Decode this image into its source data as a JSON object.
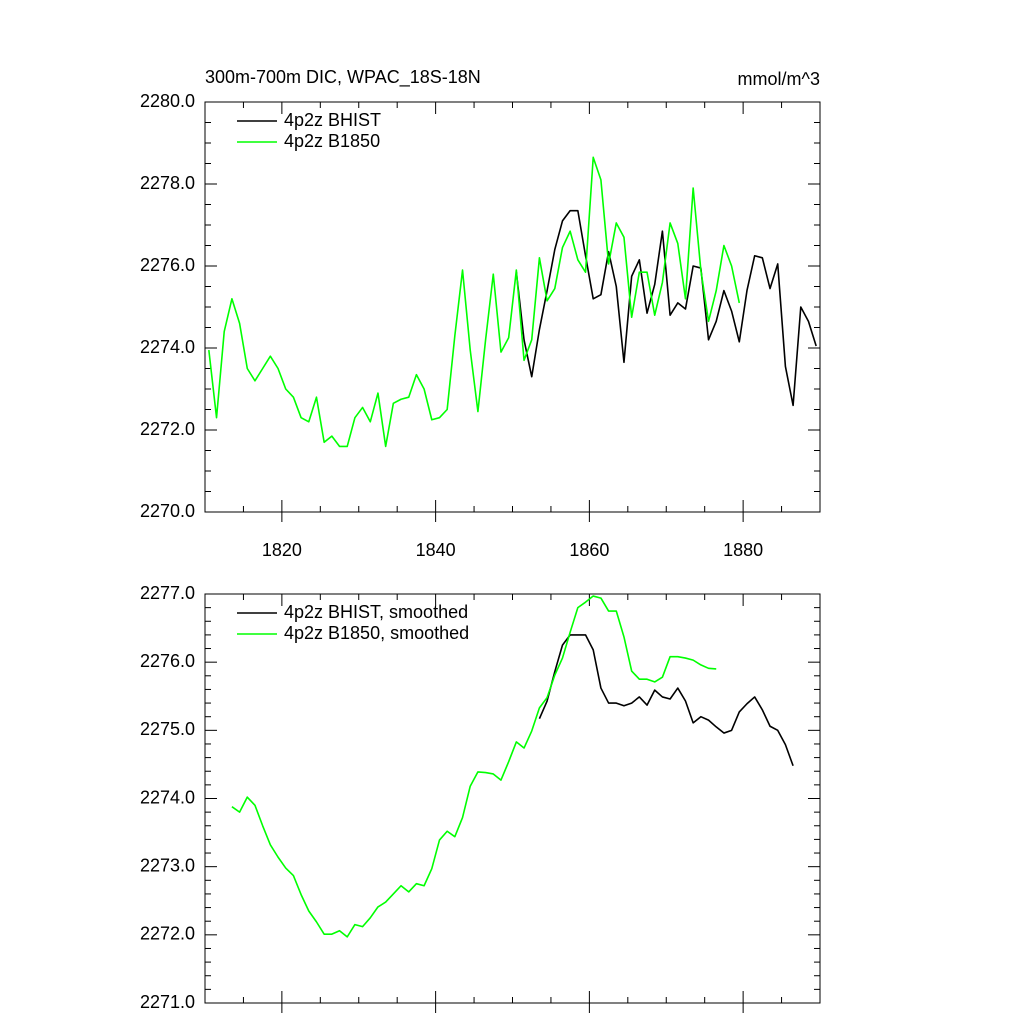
{
  "chart_data": [
    {
      "type": "line",
      "title": "300m-700m DIC, WPAC_18S-18N",
      "units": "mmol/m^3",
      "xlim": [
        1810,
        1890
      ],
      "xticks": [
        1820,
        1840,
        1860,
        1880
      ],
      "ylim": [
        2270,
        2280
      ],
      "yticks": [
        {
          "value": 2270,
          "label": "2270.0"
        },
        {
          "value": 2272,
          "label": "2272.0"
        },
        {
          "value": 2274,
          "label": "2274.0"
        },
        {
          "value": 2276,
          "label": "2276.0"
        },
        {
          "value": 2278,
          "label": "2278.0"
        },
        {
          "value": 2280,
          "label": "2280.0"
        }
      ],
      "series": [
        {
          "name": "4p2z BHIST",
          "color": "#000000",
          "x": [
            1850.5,
            1851.5,
            1852.5,
            1853.5,
            1854.5,
            1855.5,
            1856.5,
            1857.5,
            1858.5,
            1859.5,
            1860.5,
            1861.5,
            1862.5,
            1863.5,
            1864.5,
            1865.5,
            1866.5,
            1867.5,
            1868.5,
            1869.5,
            1870.5,
            1871.5,
            1872.5,
            1873.5,
            1874.5,
            1875.5,
            1876.5,
            1877.5,
            1878.5,
            1879.5,
            1880.5,
            1881.5,
            1882.5,
            1883.5,
            1884.5,
            1885.5,
            1886.5,
            1887.5,
            1888.5,
            1889.5
          ],
          "values": [
            2275.85,
            2274.2,
            2273.3,
            2274.45,
            2275.4,
            2276.4,
            2277.1,
            2277.35,
            2277.35,
            2276.25,
            2275.2,
            2275.3,
            2276.35,
            2275.5,
            2273.65,
            2275.75,
            2276.15,
            2274.85,
            2275.55,
            2276.85,
            2274.8,
            2275.1,
            2274.95,
            2276.0,
            2275.95,
            2274.2,
            2274.65,
            2275.4,
            2274.9,
            2274.15,
            2275.4,
            2276.25,
            2276.2,
            2275.45,
            2276.05,
            2273.55,
            2272.6,
            2275.0,
            2274.65,
            2274.05
          ]
        },
        {
          "name": "4p2z B1850",
          "color": "#00ff00",
          "x": [
            1810.5,
            1811.5,
            1812.5,
            1813.5,
            1814.5,
            1815.5,
            1816.5,
            1817.5,
            1818.5,
            1819.5,
            1820.5,
            1821.5,
            1822.5,
            1823.5,
            1824.5,
            1825.5,
            1826.5,
            1827.5,
            1828.5,
            1829.5,
            1830.5,
            1831.5,
            1832.5,
            1833.5,
            1834.5,
            1835.5,
            1836.5,
            1837.5,
            1838.5,
            1839.5,
            1840.5,
            1841.5,
            1842.5,
            1843.5,
            1844.5,
            1845.5,
            1846.5,
            1847.5,
            1848.5,
            1849.5,
            1850.5,
            1851.5,
            1852.5,
            1853.5,
            1854.5,
            1855.5,
            1856.5,
            1857.5,
            1858.5,
            1859.5,
            1860.5,
            1861.5,
            1862.5,
            1863.5,
            1864.5,
            1865.5,
            1866.5,
            1867.5,
            1868.5,
            1869.5,
            1870.5,
            1871.5,
            1872.5,
            1873.5,
            1874.5,
            1875.5,
            1876.5,
            1877.5,
            1878.5,
            1879.5
          ],
          "values": [
            2273.95,
            2272.3,
            2274.4,
            2275.2,
            2274.6,
            2273.5,
            2273.2,
            2273.5,
            2273.8,
            2273.5,
            2273.0,
            2272.8,
            2272.3,
            2272.2,
            2272.8,
            2271.7,
            2271.85,
            2271.6,
            2271.6,
            2272.3,
            2272.55,
            2272.2,
            2272.9,
            2271.6,
            2272.65,
            2272.75,
            2272.8,
            2273.35,
            2273.0,
            2272.25,
            2272.3,
            2272.5,
            2274.3,
            2275.9,
            2273.95,
            2272.45,
            2274.2,
            2275.8,
            2273.9,
            2274.25,
            2275.9,
            2273.7,
            2274.2,
            2276.2,
            2275.15,
            2275.45,
            2276.45,
            2276.85,
            2276.15,
            2275.85,
            2278.65,
            2278.1,
            2276.05,
            2277.05,
            2276.7,
            2274.75,
            2275.85,
            2275.85,
            2274.8,
            2275.6,
            2277.05,
            2276.55,
            2275.2,
            2277.9,
            2275.9,
            2274.65,
            2275.4,
            2276.5,
            2276.0,
            2275.1
          ]
        }
      ]
    },
    {
      "type": "line",
      "xlim": [
        1810,
        1890
      ],
      "xticks": [
        1820,
        1840,
        1860,
        1880
      ],
      "ylim": [
        2271,
        2277
      ],
      "yticks": [
        {
          "value": 2271,
          "label": "2271.0"
        },
        {
          "value": 2272,
          "label": "2272.0"
        },
        {
          "value": 2273,
          "label": "2273.0"
        },
        {
          "value": 2274,
          "label": "2274.0"
        },
        {
          "value": 2275,
          "label": "2275.0"
        },
        {
          "value": 2276,
          "label": "2276.0"
        },
        {
          "value": 2277,
          "label": "2277.0"
        }
      ],
      "series": [
        {
          "name": "4p2z BHIST, smoothed",
          "color": "#000000",
          "x": [
            1853.5,
            1854.5,
            1855.5,
            1856.5,
            1857.5,
            1858.5,
            1859.5,
            1860.5,
            1861.5,
            1862.5,
            1863.5,
            1864.5,
            1865.5,
            1866.5,
            1867.5,
            1868.5,
            1869.5,
            1870.5,
            1871.5,
            1872.5,
            1873.5,
            1874.5,
            1875.5,
            1876.5,
            1877.5,
            1878.5,
            1879.5,
            1880.5,
            1881.5,
            1882.5,
            1883.5,
            1884.5,
            1885.5,
            1886.5
          ],
          "values": [
            2275.17,
            2275.43,
            2275.86,
            2276.25,
            2276.4,
            2276.4,
            2276.4,
            2276.18,
            2275.62,
            2275.4,
            2275.4,
            2275.36,
            2275.4,
            2275.49,
            2275.37,
            2275.59,
            2275.49,
            2275.46,
            2275.62,
            2275.43,
            2275.11,
            2275.2,
            2275.15,
            2275.05,
            2274.96,
            2275.0,
            2275.27,
            2275.39,
            2275.49,
            2275.3,
            2275.06,
            2275.0,
            2274.79,
            2274.48
          ]
        },
        {
          "name": "4p2z B1850, smoothed",
          "color": "#00ff00",
          "x": [
            1813.5,
            1814.5,
            1815.5,
            1816.5,
            1817.5,
            1818.5,
            1819.5,
            1820.5,
            1821.5,
            1822.5,
            1823.5,
            1824.5,
            1825.5,
            1826.5,
            1827.5,
            1828.5,
            1829.5,
            1830.5,
            1831.5,
            1832.5,
            1833.5,
            1834.5,
            1835.5,
            1836.5,
            1837.5,
            1838.5,
            1839.5,
            1840.5,
            1841.5,
            1842.5,
            1843.5,
            1844.5,
            1845.5,
            1846.5,
            1847.5,
            1848.5,
            1849.5,
            1850.5,
            1851.5,
            1852.5,
            1853.5,
            1854.5,
            1855.5,
            1856.5,
            1857.5,
            1858.5,
            1859.5,
            1860.5,
            1861.5,
            1862.5,
            1863.5,
            1864.5,
            1865.5,
            1866.5,
            1867.5,
            1868.5,
            1869.5,
            1870.5,
            1871.5,
            1872.5,
            1873.5,
            1874.5,
            1875.5,
            1876.5
          ],
          "values": [
            2273.88,
            2273.8,
            2274.02,
            2273.9,
            2273.6,
            2273.32,
            2273.14,
            2272.98,
            2272.87,
            2272.59,
            2272.35,
            2272.19,
            2272.01,
            2272.01,
            2272.06,
            2271.97,
            2272.15,
            2272.12,
            2272.25,
            2272.41,
            2272.48,
            2272.6,
            2272.72,
            2272.63,
            2272.75,
            2272.72,
            2272.97,
            2273.39,
            2273.52,
            2273.44,
            2273.72,
            2274.18,
            2274.39,
            2274.38,
            2274.36,
            2274.27,
            2274.54,
            2274.83,
            2274.74,
            2274.99,
            2275.33,
            2275.48,
            2275.81,
            2276.06,
            2276.44,
            2276.8,
            2276.88,
            2276.97,
            2276.94,
            2276.75,
            2276.75,
            2276.37,
            2275.87,
            2275.75,
            2275.75,
            2275.71,
            2275.78,
            2276.08,
            2276.08,
            2276.06,
            2276.03,
            2275.96,
            2275.91,
            2275.9
          ]
        }
      ]
    }
  ]
}
